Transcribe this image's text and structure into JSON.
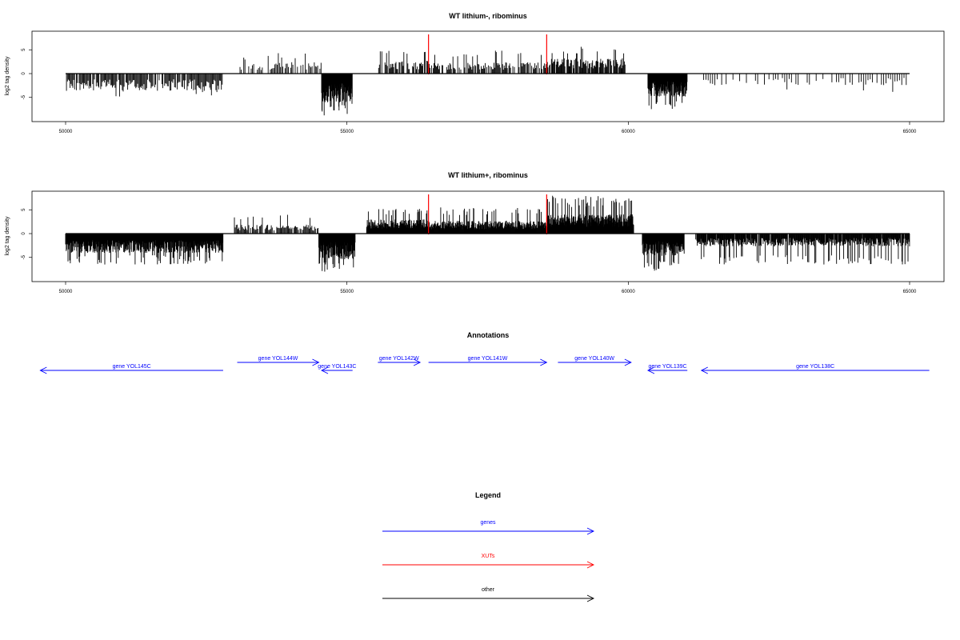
{
  "colors": {
    "gene": "#0000ff",
    "xut": "#ff0000",
    "other": "#000000",
    "signal": "#000000"
  },
  "chart_data": [
    {
      "type": "bar",
      "title": "WT lithium-, ribominus",
      "ylabel": "log2 tag density",
      "xlim": [
        50000,
        65000
      ],
      "ylim": [
        -9.5,
        9.5
      ],
      "xticks": [
        "50000",
        "55000",
        "60000",
        "65000"
      ],
      "yticks": [
        "5",
        "0",
        "-5"
      ],
      "xut_markers": [
        56450,
        58550
      ],
      "segments": [
        {
          "x0": 50000,
          "x1": 52800,
          "sign": -1,
          "mean": 2.6,
          "peak": 5.0,
          "step": 16,
          "fill": 0.9,
          "seed": 11
        },
        {
          "x0": 53100,
          "x1": 53600,
          "sign": 1,
          "mean": 1.5,
          "peak": 3.5,
          "step": 22,
          "fill": 0.5,
          "seed": 12
        },
        {
          "x0": 53600,
          "x1": 54550,
          "sign": 1,
          "mean": 1.8,
          "peak": 4.5,
          "step": 20,
          "fill": 0.7,
          "seed": 13
        },
        {
          "x0": 54550,
          "x1": 55100,
          "sign": -1,
          "mean": 4.5,
          "peak": 9.0,
          "step": 5,
          "fill": 1.0,
          "seed": 14
        },
        {
          "x0": 55550,
          "x1": 56450,
          "sign": 1,
          "mean": 2.0,
          "peak": 5.5,
          "step": 14,
          "fill": 0.75,
          "seed": 15
        },
        {
          "x0": 56450,
          "x1": 58550,
          "sign": 1,
          "mean": 1.8,
          "peak": 5.0,
          "step": 14,
          "fill": 0.75,
          "seed": 16
        },
        {
          "x0": 58550,
          "x1": 59950,
          "sign": 1,
          "mean": 2.4,
          "peak": 6.0,
          "step": 12,
          "fill": 0.85,
          "seed": 17
        },
        {
          "x0": 60350,
          "x1": 61050,
          "sign": -1,
          "mean": 3.6,
          "peak": 7.5,
          "step": 6,
          "fill": 1.0,
          "seed": 18
        },
        {
          "x0": 61300,
          "x1": 65000,
          "sign": -1,
          "mean": 1.8,
          "peak": 4.5,
          "step": 40,
          "fill": 0.6,
          "seed": 19
        }
      ]
    },
    {
      "type": "bar",
      "title": "WT lithium+, ribominus",
      "ylabel": "log2 tag density",
      "xlim": [
        50000,
        65000
      ],
      "ylim": [
        -9.5,
        9.5
      ],
      "xticks": [
        "50000",
        "55000",
        "60000",
        "65000"
      ],
      "yticks": [
        "5",
        "0",
        "-5"
      ],
      "xut_markers": [
        56450,
        58550
      ],
      "segments": [
        {
          "x0": 50000,
          "x1": 52800,
          "sign": -1,
          "mean": 3.0,
          "peak": 6.5,
          "step": 6,
          "fill": 1.0,
          "seed": 21
        },
        {
          "x0": 53000,
          "x1": 54500,
          "sign": 1,
          "mean": 1.4,
          "peak": 4.0,
          "step": 16,
          "fill": 0.8,
          "seed": 22
        },
        {
          "x0": 54500,
          "x1": 55150,
          "sign": -1,
          "mean": 4.0,
          "peak": 8.0,
          "step": 5,
          "fill": 1.0,
          "seed": 23
        },
        {
          "x0": 55350,
          "x1": 56450,
          "sign": 1,
          "mean": 2.2,
          "peak": 5.5,
          "step": 6,
          "fill": 1.0,
          "seed": 24
        },
        {
          "x0": 56450,
          "x1": 58550,
          "sign": 1,
          "mean": 2.0,
          "peak": 5.5,
          "step": 7,
          "fill": 1.0,
          "seed": 25
        },
        {
          "x0": 58550,
          "x1": 60100,
          "sign": 1,
          "mean": 3.0,
          "peak": 8.0,
          "step": 5,
          "fill": 1.0,
          "seed": 26
        },
        {
          "x0": 60250,
          "x1": 61000,
          "sign": -1,
          "mean": 3.5,
          "peak": 8.0,
          "step": 6,
          "fill": 1.0,
          "seed": 27
        },
        {
          "x0": 61200,
          "x1": 65000,
          "sign": -1,
          "mean": 2.0,
          "peak": 6.5,
          "step": 9,
          "fill": 0.95,
          "seed": 28
        }
      ]
    }
  ],
  "annotations": {
    "title": "Annotations",
    "genes": [
      {
        "label": "gene YOL145C",
        "from": 52800,
        "to": 49550,
        "row": "low"
      },
      {
        "label": "gene YOL144W",
        "from": 53050,
        "to": 54500,
        "row": "high"
      },
      {
        "label": "gene YOL143C",
        "from": 55100,
        "to": 54550,
        "row": "low"
      },
      {
        "label": "gene YOL142W",
        "from": 55550,
        "to": 56300,
        "row": "high"
      },
      {
        "label": "gene YOL141W",
        "from": 56450,
        "to": 58550,
        "row": "high"
      },
      {
        "label": "gene YOL140W",
        "from": 58750,
        "to": 60050,
        "row": "high"
      },
      {
        "label": "gene YOL139C",
        "from": 61050,
        "to": 60350,
        "row": "low"
      },
      {
        "label": "gene YOL138C",
        "from": 65350,
        "to": 61300,
        "row": "low"
      }
    ]
  },
  "legend": {
    "title": "Legend",
    "items": [
      {
        "label": "genes",
        "kind": "gene"
      },
      {
        "label": "XUTs",
        "kind": "xut"
      },
      {
        "label": "other",
        "kind": "other"
      }
    ]
  }
}
